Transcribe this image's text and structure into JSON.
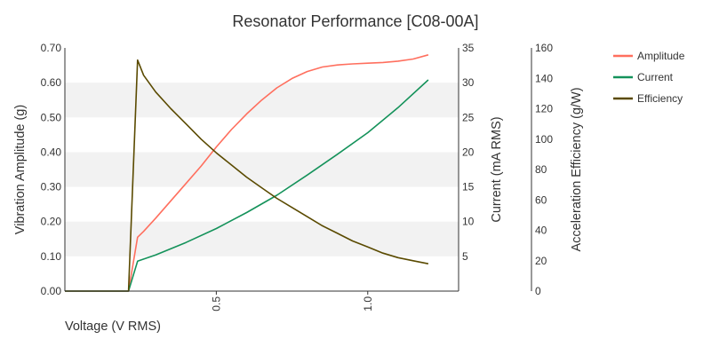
{
  "chart_data": {
    "type": "line",
    "title": "Resonator Performance [C08-00A]",
    "xlabel": "Voltage (V RMS)",
    "xlim": [
      0,
      1.3
    ],
    "x_ticks": [
      "0.5",
      "1.0"
    ],
    "x_tick_values": [
      0.5,
      1.0
    ],
    "y_axes": [
      {
        "id": "amplitude",
        "label": "Vibration Amplitude (g)",
        "lim": [
          0,
          0.7
        ],
        "ticks": [
          "0.00",
          "0.10",
          "0.20",
          "0.30",
          "0.40",
          "0.50",
          "0.60",
          "0.70"
        ],
        "tick_values": [
          0,
          0.1,
          0.2,
          0.3,
          0.4,
          0.5,
          0.6,
          0.7
        ]
      },
      {
        "id": "current",
        "label": "Current (mA RMS)",
        "lim": [
          0,
          35
        ],
        "ticks": [
          "5",
          "10",
          "15",
          "20",
          "25",
          "30",
          "35"
        ],
        "tick_values": [
          5,
          10,
          15,
          20,
          25,
          30,
          35
        ]
      },
      {
        "id": "efficiency",
        "label": "Acceleration Efficiency (g/W)",
        "lim": [
          0,
          160
        ],
        "ticks": [
          "0",
          "20",
          "40",
          "60",
          "80",
          "100",
          "120",
          "140",
          "160"
        ],
        "tick_values": [
          0,
          20,
          40,
          60,
          80,
          100,
          120,
          140,
          160
        ]
      }
    ],
    "grid": "alternating horizontal bands",
    "legend_position": "top-right",
    "series": [
      {
        "name": "Amplitude",
        "axis": "amplitude",
        "color": "#ff6f5e",
        "x": [
          0,
          0.21,
          0.24,
          0.26,
          0.3,
          0.35,
          0.4,
          0.45,
          0.5,
          0.55,
          0.6,
          0.65,
          0.7,
          0.75,
          0.8,
          0.85,
          0.9,
          0.95,
          1.0,
          1.05,
          1.1,
          1.15,
          1.2
        ],
        "y": [
          0,
          0,
          0.155,
          0.172,
          0.21,
          0.26,
          0.31,
          0.36,
          0.415,
          0.465,
          0.51,
          0.55,
          0.585,
          0.612,
          0.632,
          0.645,
          0.651,
          0.654,
          0.656,
          0.658,
          0.662,
          0.668,
          0.68
        ]
      },
      {
        "name": "Current",
        "axis": "current",
        "color": "#14925a",
        "x": [
          0,
          0.21,
          0.24,
          0.3,
          0.4,
          0.5,
          0.6,
          0.7,
          0.8,
          0.9,
          1.0,
          1.1,
          1.2
        ],
        "y": [
          0,
          0,
          4.3,
          5.2,
          7.0,
          9.0,
          11.3,
          13.8,
          16.7,
          19.7,
          22.8,
          26.4,
          30.4
        ]
      },
      {
        "name": "Efficiency",
        "axis": "efficiency",
        "color": "#5a4a00",
        "x": [
          0,
          0.21,
          0.24,
          0.26,
          0.3,
          0.35,
          0.4,
          0.45,
          0.5,
          0.55,
          0.6,
          0.65,
          0.7,
          0.75,
          0.8,
          0.85,
          0.9,
          0.95,
          1.0,
          1.05,
          1.1,
          1.15,
          1.2
        ],
        "y": [
          0,
          0,
          152,
          142,
          131,
          120,
          110,
          100,
          91,
          83,
          75,
          68,
          61,
          55,
          49,
          43,
          38,
          33,
          29,
          25,
          22,
          20,
          18
        ]
      }
    ]
  }
}
